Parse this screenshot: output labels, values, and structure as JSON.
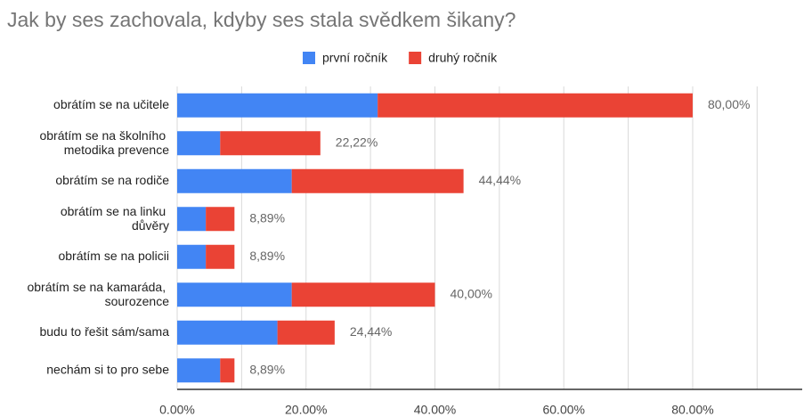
{
  "chart_data": {
    "type": "stacked-bar-horizontal",
    "title": "Jak by ses zachovala, kdyby ses stala svědkem šikany?",
    "categories": [
      "obrátím se na učitele",
      "obrátím se na školního metodika prevence",
      "obrátím se na rodiče",
      "obrátím se na linku důvěry",
      "obrátím se na policii",
      "obrátím se na kamaráda, sourozence",
      "budu to řešit sám/sama",
      "nechám si to pro sebe"
    ],
    "series": [
      {
        "name": "první ročník",
        "color": "#4285f4",
        "values": [
          31.11,
          6.67,
          17.78,
          4.44,
          4.44,
          17.78,
          15.56,
          6.67
        ]
      },
      {
        "name": "druhý ročník",
        "color": "#ea4335",
        "values": [
          48.89,
          15.55,
          26.66,
          4.45,
          4.45,
          22.22,
          8.88,
          2.22
        ]
      }
    ],
    "totals": [
      80,
      22.22,
      44.44,
      8.89,
      8.89,
      40,
      24.44,
      8.89
    ],
    "total_labels": [
      "80,00%",
      "22,22%",
      "44,44%",
      "8,89%",
      "8,89%",
      "40,00%",
      "24,44%",
      "8,89%"
    ],
    "xlim": [
      0,
      97
    ],
    "xticks": [
      {
        "value": 0,
        "label": "0.00%"
      },
      {
        "value": 20,
        "label": "20.00%"
      },
      {
        "value": 40,
        "label": "40.00%"
      },
      {
        "value": 60,
        "label": "60.00%"
      },
      {
        "value": 80,
        "label": "80.00%"
      }
    ],
    "minor_xticks": [
      10,
      30,
      50,
      70,
      90
    ],
    "grid": true,
    "legend": "top"
  }
}
